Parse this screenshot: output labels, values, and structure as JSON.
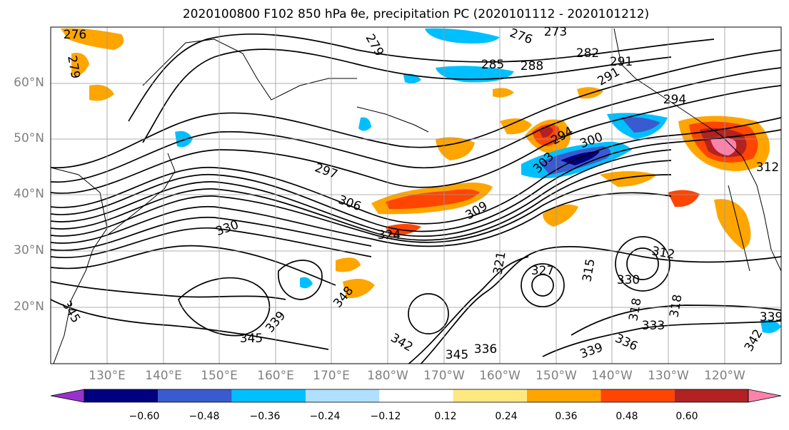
{
  "title": "2020100800 F102 850 hPa θe, precipitation PC (2020101112 - 2020101212)",
  "map": {
    "lat_labels": [
      "60°N",
      "50°N",
      "40°N",
      "30°N",
      "20°N"
    ],
    "lon_labels": [
      "130°E",
      "140°E",
      "150°E",
      "160°E",
      "170°E",
      "180°W",
      "170°W",
      "160°W",
      "150°W",
      "140°W",
      "130°W",
      "120°W"
    ],
    "contour_labels": [
      "276",
      "276",
      "273",
      "279",
      "279",
      "282",
      "285",
      "288",
      "291",
      "291",
      "294",
      "294",
      "297",
      "300",
      "303",
      "306",
      "309",
      "312",
      "312",
      "315",
      "318",
      "318",
      "321",
      "324",
      "327",
      "330",
      "330",
      "333",
      "336",
      "336",
      "339",
      "339",
      "339",
      "342",
      "342",
      "345",
      "345",
      "345",
      "348"
    ]
  },
  "colorbar": {
    "ticks": [
      "−0.60",
      "−0.48",
      "−0.36",
      "−0.24",
      "−0.12",
      "0.12",
      "0.24",
      "0.36",
      "0.48",
      "0.60"
    ],
    "colors": [
      "#9932cc",
      "#000080",
      "#3a5bcf",
      "#00bfff",
      "#b0e0ff",
      "#ffffff",
      "#ffe880",
      "#ffa500",
      "#ff4500",
      "#b22222",
      "#ff82ab"
    ]
  },
  "colors": {
    "contour": "#000000",
    "coast": "#000000",
    "grid": "#999999",
    "axis_label": "#808080"
  }
}
